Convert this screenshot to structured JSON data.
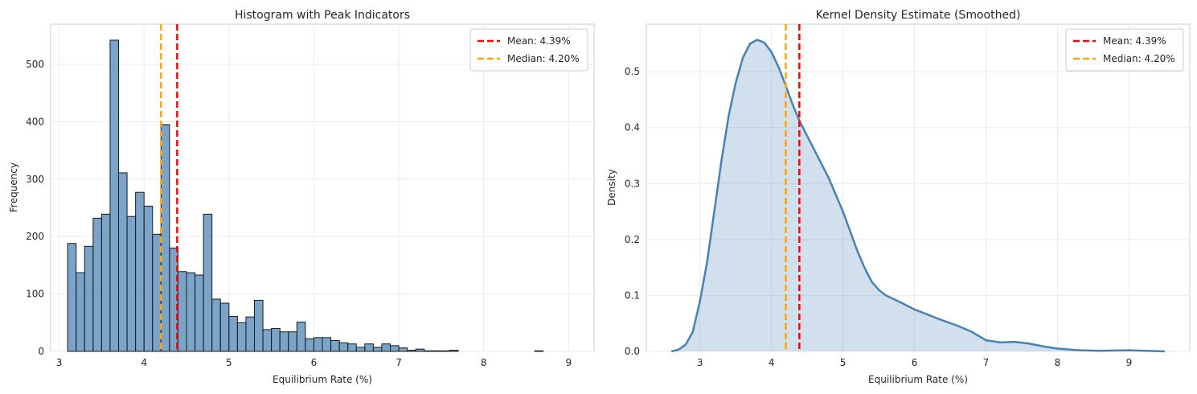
{
  "chart_data": [
    {
      "type": "bar",
      "subtype": "histogram",
      "title": "Histogram with Peak Indicators",
      "xlabel": "Equilibrium Rate (%)",
      "ylabel": "Frequency",
      "xlim": [
        2.9,
        9.3
      ],
      "ylim": [
        0,
        570
      ],
      "xticks": [
        3,
        4,
        5,
        6,
        7,
        8,
        9
      ],
      "yticks": [
        0,
        100,
        200,
        300,
        400,
        500
      ],
      "grid": true,
      "bar_color": "#4682b4",
      "bin_start": 3.1,
      "bin_width": 0.1,
      "values": [
        188,
        137,
        183,
        232,
        239,
        542,
        311,
        235,
        277,
        253,
        204,
        395,
        180,
        139,
        137,
        133,
        239,
        91,
        84,
        61,
        50,
        60,
        89,
        38,
        40,
        34,
        34,
        51,
        22,
        24,
        24,
        19,
        15,
        13,
        7,
        13,
        7,
        13,
        10,
        6,
        2,
        4,
        1,
        1,
        1,
        2,
        0,
        0,
        0,
        0,
        0,
        0,
        0,
        0,
        0,
        1
      ],
      "vlines": [
        {
          "label": "Mean: 4.39%",
          "x": 4.39,
          "color": "#ff0000"
        },
        {
          "label": "Median: 4.20%",
          "x": 4.2,
          "color": "#ffa500"
        }
      ],
      "legend": "top-right"
    },
    {
      "type": "area",
      "subtype": "kde",
      "title": "Kernel Density Estimate (Smoothed)",
      "xlabel": "Equilibrium Rate (%)",
      "ylabel": "Density",
      "xlim": [
        2.25,
        9.85
      ],
      "ylim": [
        0,
        0.585
      ],
      "xticks": [
        3,
        4,
        5,
        6,
        7,
        8,
        9
      ],
      "yticks": [
        0.0,
        0.1,
        0.2,
        0.3,
        0.4,
        0.5
      ],
      "grid": true,
      "line_color": "#4682b4",
      "x": [
        2.6,
        2.7,
        2.8,
        2.9,
        3.0,
        3.1,
        3.2,
        3.3,
        3.4,
        3.5,
        3.6,
        3.7,
        3.8,
        3.9,
        4.0,
        4.1,
        4.2,
        4.3,
        4.4,
        4.5,
        4.6,
        4.7,
        4.8,
        4.9,
        5.0,
        5.1,
        5.2,
        5.3,
        5.4,
        5.5,
        5.6,
        5.8,
        6.0,
        6.2,
        6.4,
        6.6,
        6.8,
        7.0,
        7.2,
        7.4,
        7.6,
        7.8,
        8.0,
        8.3,
        8.6,
        9.0,
        9.5
      ],
      "y": [
        0.0,
        0.003,
        0.012,
        0.035,
        0.09,
        0.16,
        0.25,
        0.34,
        0.42,
        0.48,
        0.525,
        0.55,
        0.557,
        0.552,
        0.535,
        0.508,
        0.475,
        0.44,
        0.41,
        0.385,
        0.36,
        0.335,
        0.31,
        0.28,
        0.25,
        0.215,
        0.18,
        0.15,
        0.125,
        0.11,
        0.1,
        0.088,
        0.075,
        0.065,
        0.055,
        0.046,
        0.035,
        0.02,
        0.016,
        0.017,
        0.014,
        0.009,
        0.005,
        0.002,
        0.001,
        0.002,
        0.0
      ],
      "vlines": [
        {
          "label": "Mean: 4.39%",
          "x": 4.39,
          "color": "#ff0000"
        },
        {
          "label": "Median: 4.20%",
          "x": 4.2,
          "color": "#ffa500"
        }
      ],
      "legend": "top-right"
    }
  ]
}
